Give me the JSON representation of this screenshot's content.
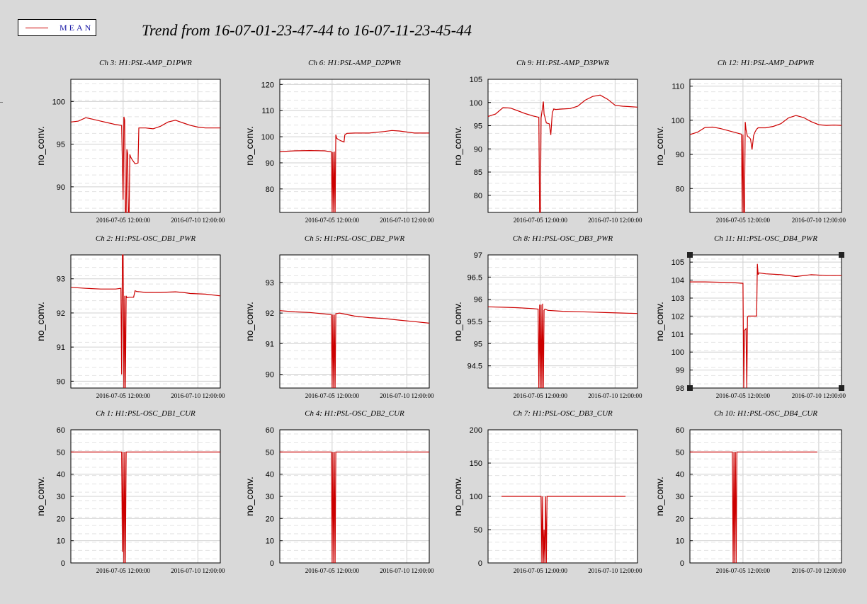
{
  "legend": {
    "label": "MEAN",
    "color": "#cc0000"
  },
  "title": "Trend from 16-07-01-23-47-44 to 16-07-11-23-45-44",
  "chart_data": [
    {
      "type": "line",
      "title": "Ch 3: H1:PSL-AMP_D1PWR",
      "ylabel": "no_conv.",
      "ylim": [
        87,
        102.6
      ],
      "yticks": [
        90,
        95,
        100
      ],
      "xticks": [
        "2016-07-05 12:00:00",
        "2016-07-10 12:00:00"
      ],
      "series": [
        {
          "name": "MEAN",
          "x": [
            0,
            0.5,
            1,
            1.5,
            2,
            2.5,
            3,
            3.4,
            3.5,
            3.55,
            3.6,
            3.65,
            3.7,
            3.75,
            3.8,
            3.85,
            3.9,
            3.95,
            4.0,
            4.1,
            4.3,
            4.5,
            4.55,
            4.6,
            5,
            5.5,
            6,
            6.5,
            7,
            7.5,
            8,
            8.5,
            9,
            9.5,
            10
          ],
          "y": [
            97.6,
            97.7,
            98.1,
            97.9,
            97.7,
            97.5,
            97.3,
            97.2,
            88.5,
            98.2,
            97.8,
            87,
            87,
            94.4,
            93.9,
            87,
            87,
            93.8,
            93.5,
            93.2,
            92.7,
            92.8,
            96.9,
            96.9,
            96.9,
            96.8,
            97.1,
            97.6,
            97.8,
            97.5,
            97.2,
            97.0,
            96.9,
            96.9,
            96.9
          ]
        }
      ]
    },
    {
      "type": "line",
      "title": "Ch 6: H1:PSL-AMP_D2PWR",
      "ylabel": "no_conv.",
      "ylim": [
        71,
        122
      ],
      "yticks": [
        80,
        90,
        100,
        110,
        120
      ],
      "xticks": [
        "2016-07-05 12:00:00",
        "2016-07-10 12:00:00"
      ],
      "series": [
        {
          "name": "MEAN",
          "x": [
            0,
            1,
            2,
            3,
            3.45,
            3.5,
            3.55,
            3.6,
            3.65,
            3.7,
            3.75,
            3.8,
            3.85,
            3.9,
            4.1,
            4.3,
            4.35,
            4.5,
            5,
            6,
            7,
            7.5,
            8,
            9,
            10
          ],
          "y": [
            94.3,
            94.6,
            94.7,
            94.6,
            94.2,
            71,
            94.1,
            71,
            94.3,
            71,
            100.8,
            99.5,
            99.2,
            99,
            98.4,
            98,
            100.7,
            101.3,
            101.4,
            101.4,
            102,
            102.4,
            102.2,
            101.4,
            101.4
          ]
        }
      ]
    },
    {
      "type": "line",
      "title": "Ch 9: H1:PSL-AMP_D3PWR",
      "ylabel": "no_conv.",
      "ylim": [
        76.3,
        105
      ],
      "yticks": [
        80,
        85,
        90,
        95,
        100,
        105
      ],
      "xticks": [
        "2016-07-05 12:00:00",
        "2016-07-10 12:00:00"
      ],
      "series": [
        {
          "name": "MEAN",
          "x": [
            0,
            0.5,
            1,
            1.5,
            2,
            2.5,
            3,
            3.4,
            3.45,
            3.5,
            3.55,
            3.7,
            3.75,
            3.8,
            3.9,
            4.1,
            4.2,
            4.3,
            4.4,
            4.5,
            5,
            5.5,
            6,
            6.5,
            7,
            7.5,
            8,
            8.5,
            9,
            9.5,
            10
          ],
          "y": [
            97,
            97.5,
            98.9,
            98.8,
            98.2,
            97.6,
            97.1,
            96.8,
            76.3,
            76.3,
            96.7,
            100.2,
            97.5,
            96.9,
            95.6,
            95.4,
            93,
            97.8,
            98.6,
            98.5,
            98.6,
            98.7,
            99.2,
            100.5,
            101.3,
            101.6,
            100.7,
            99.4,
            99.2,
            99.1,
            99
          ]
        }
      ]
    },
    {
      "type": "line",
      "title": "Ch 12: H1:PSL-AMP_D4PWR",
      "ylabel": "no_conv.",
      "ylim": [
        73,
        112
      ],
      "yticks": [
        80,
        90,
        100,
        110
      ],
      "xticks": [
        "2016-07-05 12:00:00",
        "2016-07-10 12:00:00"
      ],
      "series": [
        {
          "name": "MEAN",
          "x": [
            0,
            0.5,
            1,
            1.5,
            2,
            2.5,
            3,
            3.4,
            3.45,
            3.5,
            3.55,
            3.6,
            3.65,
            3.7,
            3.75,
            3.8,
            3.9,
            4.0,
            4.1,
            4.2,
            4.3,
            4.4,
            4.5,
            5,
            5.5,
            6,
            6.5,
            7,
            7.5,
            8,
            8.5,
            9,
            9.5,
            10
          ],
          "y": [
            95.8,
            96.5,
            97.9,
            98,
            97.6,
            97.0,
            96.4,
            95.9,
            73,
            95.8,
            73,
            73,
            99.5,
            97.3,
            96.1,
            95.3,
            95,
            94.5,
            91.4,
            95.5,
            96.6,
            97.4,
            97.8,
            97.8,
            98.2,
            99,
            100.7,
            101.4,
            100.8,
            99.6,
            98.7,
            98.5,
            98.6,
            98.5
          ]
        }
      ]
    },
    {
      "type": "line",
      "title": "Ch 2: H1:PSL-OSC_DB1_PWR",
      "ylabel": "no_conv.",
      "ylim": [
        89.8,
        93.7
      ],
      "yticks": [
        90,
        91,
        92,
        93
      ],
      "xticks": [
        "2016-07-05 12:00:00",
        "2016-07-10 12:00:00"
      ],
      "series": [
        {
          "name": "MEAN",
          "x": [
            0,
            1,
            2,
            3,
            3.35,
            3.4,
            3.45,
            3.5,
            3.55,
            3.6,
            3.65,
            3.7,
            3.75,
            3.9,
            4.2,
            4.3,
            4.4,
            5,
            6,
            7,
            7.5,
            8,
            9,
            10
          ],
          "y": [
            92.75,
            92.72,
            92.7,
            92.7,
            92.72,
            90.2,
            93.7,
            93.7,
            89.8,
            92.5,
            89.8,
            92.5,
            92.45,
            92.46,
            92.46,
            92.65,
            92.63,
            92.6,
            92.6,
            92.62,
            92.6,
            92.57,
            92.55,
            92.5
          ]
        }
      ]
    },
    {
      "type": "line",
      "title": "Ch 5: H1:PSL-OSC_DB2_PWR",
      "ylabel": "no_conv.",
      "ylim": [
        89.55,
        93.9
      ],
      "yticks": [
        90,
        91,
        92,
        93
      ],
      "xticks": [
        "2016-07-05 12:00:00",
        "2016-07-10 12:00:00"
      ],
      "series": [
        {
          "name": "MEAN",
          "x": [
            0,
            1,
            2,
            3,
            3.45,
            3.5,
            3.55,
            3.6,
            3.65,
            3.7,
            3.75,
            4,
            5,
            6,
            7,
            8,
            9,
            10
          ],
          "y": [
            92.08,
            92.04,
            92.02,
            91.97,
            91.95,
            89.55,
            91.95,
            89.55,
            91.95,
            89.55,
            91.98,
            92,
            91.9,
            91.85,
            91.82,
            91.77,
            91.72,
            91.67
          ]
        }
      ]
    },
    {
      "type": "line",
      "title": "Ch 8: H1:PSL-OSC_DB3_PWR",
      "ylabel": "no_conv.",
      "ylim": [
        94,
        97
      ],
      "yticks": [
        94.5,
        95,
        95.5,
        96,
        96.5,
        97
      ],
      "xticks": [
        "2016-07-05 12:00:00",
        "2016-07-10 12:00:00"
      ],
      "series": [
        {
          "name": "MEAN",
          "x": [
            0,
            1,
            2,
            3,
            3.35,
            3.4,
            3.45,
            3.5,
            3.55,
            3.6,
            3.65,
            3.7,
            3.75,
            3.8,
            4,
            5,
            6,
            7,
            8,
            9,
            10
          ],
          "y": [
            95.83,
            95.82,
            95.81,
            95.79,
            95.78,
            94,
            95.88,
            94,
            95.88,
            94,
            95.9,
            94,
            95.75,
            95.78,
            95.75,
            95.73,
            95.72,
            95.71,
            95.7,
            95.69,
            95.68
          ]
        }
      ]
    },
    {
      "type": "line",
      "title": "Ch 11: H1:PSL-OSC_DB4_PWR",
      "ylabel": "no_conv.",
      "ylim": [
        98,
        105.4
      ],
      "yticks": [
        98,
        99,
        100,
        101,
        102,
        103,
        104,
        105
      ],
      "xticks": [
        "2016-07-05 12:00:00",
        "2016-07-10 12:00:00"
      ],
      "series": [
        {
          "name": "MEAN",
          "x": [
            0,
            1,
            2,
            3,
            3.5,
            3.55,
            3.6,
            3.7,
            3.75,
            3.8,
            3.85,
            3.9,
            4.4,
            4.45,
            4.5,
            4.55,
            5,
            6,
            7,
            8,
            9,
            10
          ],
          "y": [
            103.9,
            103.9,
            103.88,
            103.85,
            103.82,
            98,
            101.2,
            101.3,
            98,
            101.95,
            102,
            102,
            102,
            104.9,
            104.3,
            104.4,
            104.35,
            104.3,
            104.2,
            104.3,
            104.25,
            104.25
          ]
        }
      ]
    },
    {
      "type": "line",
      "title": "Ch 1: H1:PSL-OSC_DB1_CUR",
      "ylabel": "no_conv.",
      "ylim": [
        0,
        60
      ],
      "yticks": [
        0,
        10,
        20,
        30,
        40,
        50,
        60
      ],
      "xticks": [
        "2016-07-05 12:00:00",
        "2016-07-10 12:00:00"
      ],
      "series": [
        {
          "name": "MEAN",
          "x": [
            0,
            3.4,
            3.45,
            3.5,
            3.55,
            3.6,
            3.65,
            3.7,
            3.75,
            10
          ],
          "y": [
            50,
            50,
            5,
            50,
            0,
            50,
            0,
            50,
            50,
            50
          ]
        }
      ]
    },
    {
      "type": "line",
      "title": "Ch 4: H1:PSL-OSC_DB2_CUR",
      "ylabel": "no_conv.",
      "ylim": [
        0,
        60
      ],
      "yticks": [
        0,
        10,
        20,
        30,
        40,
        50,
        60
      ],
      "xticks": [
        "2016-07-05 12:00:00",
        "2016-07-10 12:00:00"
      ],
      "series": [
        {
          "name": "MEAN",
          "x": [
            0,
            3.45,
            3.5,
            3.55,
            3.6,
            3.65,
            3.7,
            3.75,
            10
          ],
          "y": [
            50,
            50,
            0,
            50,
            0,
            50,
            0,
            50,
            50
          ]
        }
      ]
    },
    {
      "type": "line",
      "title": "Ch 7: H1:PSL-OSC_DB3_CUR",
      "ylabel": "no_conv.",
      "ylim": [
        0,
        200
      ],
      "yticks": [
        0,
        50,
        100,
        150,
        200
      ],
      "xticks": [
        "2016-07-05 12:00:00",
        "2016-07-10 12:00:00"
      ],
      "series": [
        {
          "name": "MEAN",
          "x": [
            0.9,
            3.55,
            3.6,
            3.65,
            3.7,
            3.75,
            3.8,
            3.85,
            3.9,
            3.95,
            9.2
          ],
          "y": [
            100,
            100,
            0,
            100,
            0,
            50,
            0,
            100,
            0,
            100,
            100
          ]
        }
      ]
    },
    {
      "type": "line",
      "title": "Ch 10: H1:PSL-OSC_DB4_CUR",
      "ylabel": "no_conv.",
      "ylim": [
        0,
        60
      ],
      "yticks": [
        0,
        10,
        20,
        30,
        40,
        50,
        60
      ],
      "xticks": [
        "2016-07-05 12:00:00",
        "2016-07-10 12:00:00"
      ],
      "series": [
        {
          "name": "MEAN",
          "x": [
            0,
            2.8,
            2.85,
            2.9,
            2.95,
            3.0,
            3.05,
            3.1,
            3.15,
            8.4
          ],
          "y": [
            50,
            50,
            0,
            50,
            0,
            50,
            0,
            50,
            50,
            50
          ]
        }
      ]
    }
  ]
}
